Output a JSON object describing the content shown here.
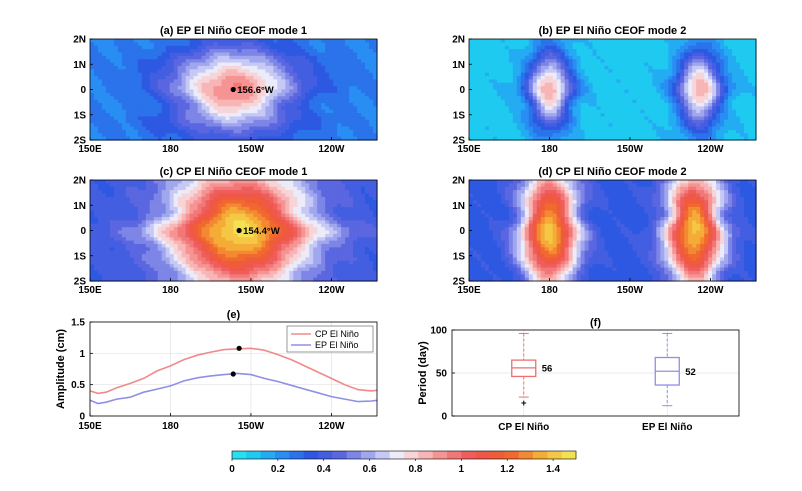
{
  "chart_data": [
    {
      "type": "heatmap",
      "panel": "a",
      "title": "(a) EP El Niño   CEOF mode 1",
      "x_ticks": [
        "150E",
        "180",
        "150W",
        "120W"
      ],
      "y_ticks": [
        "2N",
        "1N",
        "0",
        "1S",
        "2S"
      ],
      "peak_lon": 203.4,
      "peak_label": "156.6°W",
      "pattern": {
        "centers": [
          {
            "lon": 203.4,
            "amp": 0.94,
            "sx": 22,
            "sy": 1.6
          }
        ],
        "base": 0.25
      }
    },
    {
      "type": "heatmap",
      "panel": "b",
      "title": "(b) EP El Niño   CEOF mode 2",
      "x_ticks": [
        "150E",
        "180",
        "150W",
        "120W"
      ],
      "y_ticks": [
        "2N",
        "1N",
        "0",
        "1S",
        "2S"
      ],
      "pattern": {
        "centers": [
          {
            "lon": 180,
            "amp": 0.86,
            "sx": 8,
            "sy": 1.5
          },
          {
            "lon": 236,
            "amp": 0.86,
            "sx": 8,
            "sy": 1.5
          }
        ],
        "base": 0.1
      }
    },
    {
      "type": "heatmap",
      "panel": "c",
      "title": "(c) CP El Niño   CEOF mode 1",
      "x_ticks": [
        "150E",
        "180",
        "150W",
        "120W"
      ],
      "y_ticks": [
        "2N",
        "1N",
        "0",
        "1S",
        "2S"
      ],
      "peak_lon": 205.6,
      "peak_label": "154.4°W",
      "pattern": {
        "centers": [
          {
            "lon": 205.6,
            "amp": 1.45,
            "sx": 25,
            "sy": 2.3
          }
        ],
        "base": 0.38
      }
    },
    {
      "type": "heatmap",
      "panel": "d",
      "title": "(d) CP El Niño   CEOF mode 2",
      "x_ticks": [
        "150E",
        "180",
        "150W",
        "120W"
      ],
      "y_ticks": [
        "2N",
        "1N",
        "0",
        "1S",
        "2S"
      ],
      "pattern": {
        "centers": [
          {
            "lon": 180,
            "amp": 1.4,
            "sx": 10,
            "sy": 2.3
          },
          {
            "lon": 234,
            "amp": 1.4,
            "sx": 10,
            "sy": 2.3
          }
        ],
        "base": 0.35
      }
    },
    {
      "type": "line",
      "panel": "e",
      "title": "(e)",
      "ylabel": "Amplitude (cm)",
      "xlabel": "",
      "x_ticks": [
        "150E",
        "180",
        "150W",
        "120W"
      ],
      "x_tick_values": [
        150,
        180,
        210,
        240
      ],
      "y_ticks": [
        "0",
        "0.5",
        "1",
        "1.5"
      ],
      "y_tick_values": [
        0,
        0.5,
        1,
        1.5
      ],
      "xlim": [
        150,
        257
      ],
      "ylim": [
        0,
        1.5
      ],
      "grid": true,
      "legend_position": "top-right",
      "x": [
        150,
        153,
        156,
        160,
        165,
        170,
        175,
        180,
        185,
        190,
        195,
        200,
        205,
        210,
        215,
        220,
        225,
        230,
        235,
        240,
        245,
        250,
        255,
        257
      ],
      "series": [
        {
          "name": "CP El Niño",
          "color": "#f08a8a",
          "values": [
            0.4,
            0.36,
            0.38,
            0.45,
            0.52,
            0.6,
            0.72,
            0.8,
            0.9,
            0.97,
            1.02,
            1.06,
            1.07,
            1.08,
            1.05,
            0.98,
            0.9,
            0.8,
            0.7,
            0.6,
            0.5,
            0.42,
            0.4,
            0.41
          ]
        },
        {
          "name": "EP El Niño",
          "color": "#8f8fe8",
          "values": [
            0.25,
            0.2,
            0.22,
            0.27,
            0.3,
            0.38,
            0.43,
            0.48,
            0.56,
            0.61,
            0.64,
            0.66,
            0.68,
            0.66,
            0.6,
            0.55,
            0.49,
            0.43,
            0.37,
            0.31,
            0.27,
            0.23,
            0.24,
            0.25
          ]
        }
      ],
      "markers": [
        {
          "x": 205.6,
          "y": 1.08
        },
        {
          "x": 203.4,
          "y": 0.67
        }
      ]
    },
    {
      "type": "box",
      "panel": "f",
      "title": "(f)",
      "ylabel": "Period (day)",
      "categories": [
        "CP El Niño",
        "EP El Niño"
      ],
      "y_ticks": [
        "0",
        "50",
        "100"
      ],
      "y_tick_values": [
        0,
        50,
        100
      ],
      "ylim": [
        0,
        100
      ],
      "boxes": [
        {
          "name": "CP El Niño",
          "color": "#ef6f6f",
          "whisker_low": 22,
          "q1": 46,
          "median": 56,
          "q3": 65,
          "whisker_high": 96,
          "outliers": [
            17
          ],
          "median_label": "56"
        },
        {
          "name": "EP El Niño",
          "color": "#8f8fe8",
          "whisker_low": 12,
          "q1": 36,
          "median": 52,
          "q3": 68,
          "whisker_high": 96,
          "outliers": [],
          "median_label": "52"
        }
      ]
    }
  ],
  "colorbar": {
    "ticks": [
      "0",
      "0.2",
      "0.4",
      "0.6",
      "0.8",
      "1",
      "1.2",
      "1.4"
    ],
    "tick_values": [
      0,
      0.2,
      0.4,
      0.6,
      0.8,
      1.0,
      1.2,
      1.4
    ],
    "range": [
      0,
      1.5
    ],
    "levels": 24
  }
}
